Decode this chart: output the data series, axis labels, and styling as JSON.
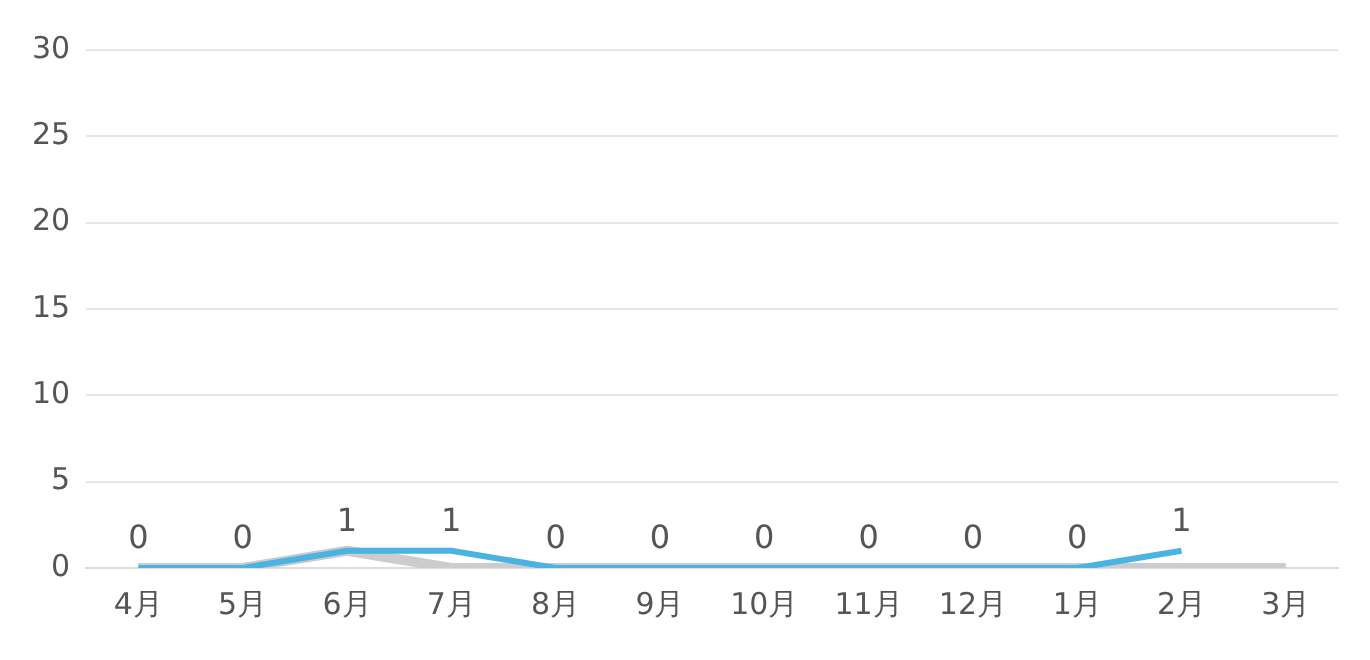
{
  "chart_data": {
    "type": "line",
    "categories": [
      "4月",
      "5月",
      "6月",
      "7月",
      "8月",
      "9月",
      "10月",
      "11月",
      "12月",
      "1月",
      "2月",
      "3月"
    ],
    "series": [
      {
        "color": "#cccccc",
        "values": [
          0,
          0,
          1,
          0,
          0,
          0,
          0,
          0,
          0,
          0,
          0,
          0
        ]
      },
      {
        "color": "#4ab3e2",
        "values": [
          0,
          0,
          1,
          1,
          0,
          0,
          0,
          0,
          0,
          0,
          1,
          null
        ],
        "value_labels": [
          "0",
          "0",
          "1",
          "1",
          "0",
          "0",
          "0",
          "0",
          "0",
          "0",
          "1",
          null
        ]
      }
    ],
    "ylim": [
      0,
      30
    ],
    "yticks": [
      0,
      5,
      10,
      15,
      20,
      25,
      30
    ],
    "grid": "y",
    "legend": false,
    "marker": "none",
    "line_style": "solid"
  }
}
